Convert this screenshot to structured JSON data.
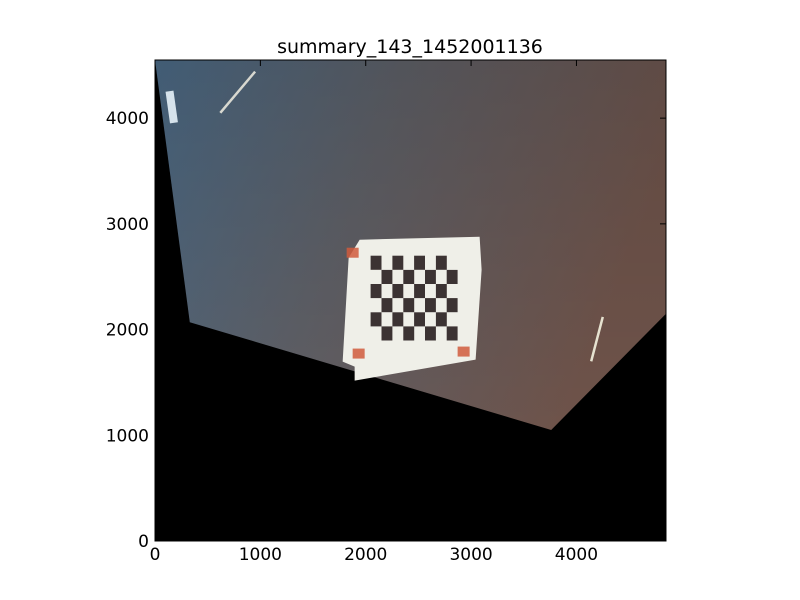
{
  "chart_data": {
    "type": "image",
    "title": "summary_143_1452001136",
    "xlabel": "",
    "ylabel": "",
    "xlim": [
      0,
      4850
    ],
    "ylim": [
      0,
      4550
    ],
    "x_ticks": [
      0,
      1000,
      2000,
      3000,
      4000
    ],
    "y_ticks": [
      0,
      1000,
      2000,
      3000,
      4000
    ],
    "x_tick_labels": [
      "0",
      "1000",
      "2000",
      "3000",
      "4000"
    ],
    "y_tick_labels": [
      "0",
      "1000",
      "2000",
      "3000",
      "4000"
    ],
    "grid": false,
    "background_fill": "#000000",
    "photo_region_polygon": [
      [
        0,
        4550
      ],
      [
        4850,
        4550
      ],
      [
        4850,
        2150
      ],
      [
        3760,
        1050
      ],
      [
        330,
        2070
      ],
      [
        0,
        4550
      ]
    ],
    "content": {
      "scene": "warped photo of floor with checkerboard calibration target",
      "board_region": {
        "x": [
          1800,
          3100
        ],
        "y": [
          1650,
          2850
        ]
      },
      "checker_grid": {
        "rows": 6,
        "cols": 8
      }
    },
    "colors": {
      "floor_left": "#4b6a86",
      "floor_right": "#6c554c",
      "paper": "#efefe8",
      "checker_dark": "#3c3333",
      "marker": "#d05a3c"
    }
  }
}
